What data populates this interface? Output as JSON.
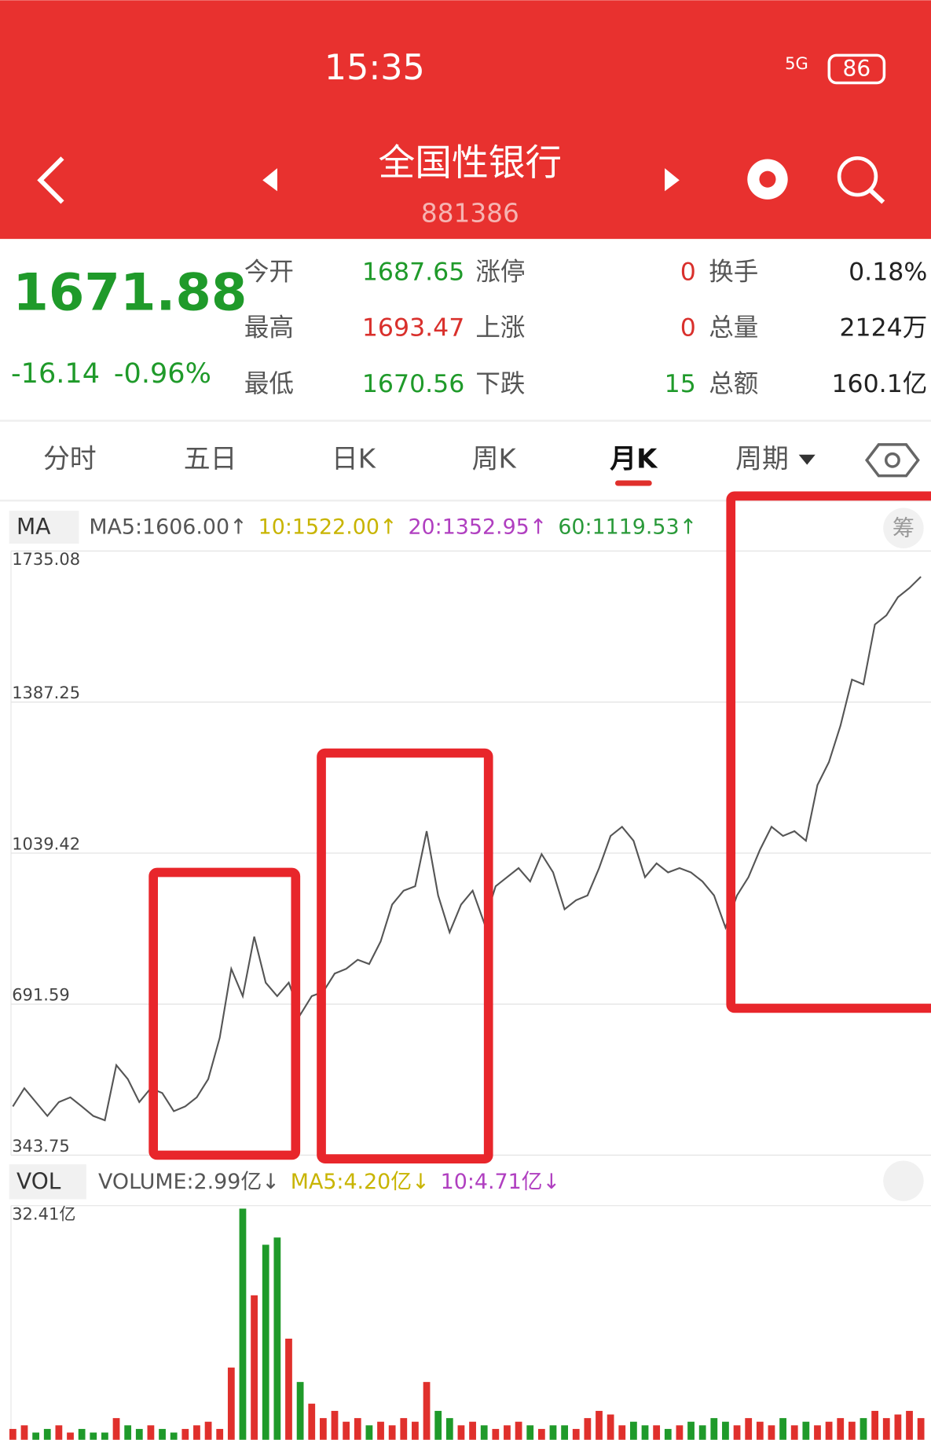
{
  "status_bar": {
    "time": "15:35",
    "network": "5G",
    "battery": "86"
  },
  "header": {
    "title": "全国性银行",
    "code": "881386"
  },
  "quote": {
    "price": "1671.88",
    "change": "-16.14",
    "change_pct": "-0.96%",
    "rows": [
      [
        "今开",
        "1687.65",
        "涨停",
        "0",
        "换手",
        "0.18%"
      ],
      [
        "最高",
        "1693.47",
        "上涨",
        "0",
        "总量",
        "2124万"
      ],
      [
        "最低",
        "1670.56",
        "下跌",
        "15",
        "总额",
        "160.1亿"
      ]
    ]
  },
  "tabs": [
    "分时",
    "五日",
    "日K",
    "周K",
    "月K",
    "周期"
  ],
  "active_tab": 4,
  "chip_label": "筹",
  "chart_data": [
    {
      "type": "line",
      "selector": "MA",
      "color": "#555555",
      "grid": true,
      "legend": [
        {
          "text": "MA5:1606.00↑",
          "color": "#555555"
        },
        {
          "text": "10:1522.00↑",
          "color": "#c8b400"
        },
        {
          "text": "20:1352.95↑",
          "color": "#b03fc0"
        },
        {
          "text": "60:1119.53↑",
          "color": "#2a9a3a"
        }
      ],
      "ylim": [
        343.75,
        1735.08
      ],
      "yticks": [
        343.75,
        691.59,
        1039.42,
        1387.25,
        1735.08
      ],
      "values": [
        456,
        498,
        466,
        434,
        466,
        477,
        456,
        434,
        424,
        551,
        519,
        466,
        498,
        487,
        445,
        456,
        477,
        519,
        614,
        773,
        710,
        847,
        741,
        710,
        741,
        667,
        710,
        720,
        762,
        773,
        794,
        784,
        836,
        921,
        953,
        963,
        1090,
        942,
        857,
        921,
        953,
        879,
        963,
        984,
        1005,
        974,
        1037,
        995,
        910,
        931,
        942,
        1005,
        1079,
        1100,
        1068,
        984,
        1016,
        995,
        1005,
        995,
        974,
        942,
        868,
        942,
        984,
        1047,
        1100,
        1079,
        1090,
        1068,
        1196,
        1249,
        1333,
        1439,
        1428,
        1566,
        1587,
        1629,
        1650,
        1676
      ]
    },
    {
      "type": "bar",
      "selector": "VOL",
      "up_color": "#e0302c",
      "down_color": "#1f9a2a",
      "legend": [
        {
          "text": "VOLUME:2.99亿↓",
          "color": "#555555"
        },
        {
          "text": "MA5:4.20亿↓",
          "color": "#c8b400"
        },
        {
          "text": "10:4.71亿↓",
          "color": "#b03fc0"
        }
      ],
      "ylim": [
        0,
        32.41
      ],
      "yticks": [
        {
          "value": 32.41,
          "label": "32.41亿"
        }
      ],
      "values": [
        1.5,
        2,
        1,
        1.5,
        2,
        1,
        1.5,
        1,
        1,
        3,
        2,
        1.5,
        2,
        1.5,
        1,
        1.5,
        2,
        2.5,
        1.5,
        10,
        32,
        20,
        27,
        28,
        14,
        8,
        5,
        3,
        4,
        2.5,
        3,
        2,
        2.5,
        2,
        3,
        2.5,
        8,
        4,
        3,
        2,
        2.5,
        2,
        1.5,
        2,
        2.5,
        2,
        1.5,
        2,
        2,
        1.5,
        3,
        4,
        3.5,
        2,
        2.5,
        2,
        2,
        1.5,
        2,
        2.5,
        2,
        3,
        2.5,
        2,
        3,
        2.5,
        2,
        3,
        2,
        2.5,
        2,
        2.5,
        3,
        2.5,
        3,
        4,
        3,
        3.5,
        4,
        3
      ]
    }
  ]
}
